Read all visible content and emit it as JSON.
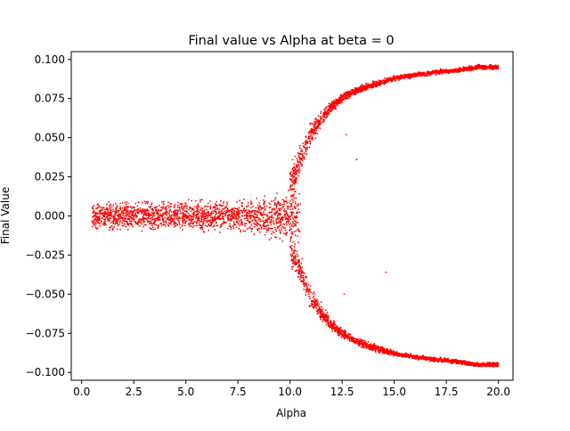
{
  "chart_data": {
    "type": "scatter",
    "title": "Final value vs Alpha at beta = 0",
    "xlabel": "Alpha",
    "ylabel": "Final Value",
    "xlim": [
      -0.5,
      20.7
    ],
    "ylim": [
      -0.105,
      0.105
    ],
    "xticks": [
      0.0,
      2.5,
      5.0,
      7.5,
      10.0,
      12.5,
      15.0,
      17.5,
      20.0
    ],
    "xtick_labels": [
      "0.0",
      "2.5",
      "5.0",
      "7.5",
      "10.0",
      "12.5",
      "15.0",
      "17.5",
      "20.0"
    ],
    "yticks": [
      -0.1,
      -0.075,
      -0.05,
      -0.025,
      0.0,
      0.025,
      0.05,
      0.075,
      0.1
    ],
    "ytick_labels": [
      "−0.100",
      "−0.075",
      "−0.050",
      "−0.025",
      "0.000",
      "0.025",
      "0.050",
      "0.075",
      "0.100"
    ],
    "grid": false,
    "marker_color": "#ff0000",
    "series": [
      {
        "x_range": [
          0.5,
          20.0
        ],
        "branches": [
          {
            "x": [
              0.5,
              4.0,
              7.0,
              8.5,
              9.5,
              10.0,
              10.5
            ],
            "center": [
              0.0,
              0.0,
              0.0,
              0.0,
              0.0,
              0.0,
              0.0
            ],
            "spread": [
              0.012,
              0.012,
              0.012,
              0.015,
              0.02,
              0.025,
              0.03
            ]
          },
          {
            "x": [
              10.0,
              10.5,
              11.0,
              11.5,
              12.0,
              12.5,
              13.0,
              14.0,
              15.0,
              16.0,
              17.0,
              18.0,
              19.0,
              20.0
            ],
            "center": [
              0.02,
              0.035,
              0.052,
              0.062,
              0.07,
              0.075,
              0.079,
              0.084,
              0.088,
              0.09,
              0.092,
              0.093,
              0.095,
              0.095
            ],
            "spread": [
              0.015,
              0.012,
              0.01,
              0.007,
              0.005,
              0.004,
              0.003,
              0.003,
              0.002,
              0.002,
              0.002,
              0.002,
              0.002,
              0.002
            ]
          },
          {
            "x": [
              10.0,
              10.5,
              11.0,
              11.5,
              12.0,
              12.5,
              13.0,
              14.0,
              15.0,
              16.0,
              17.0,
              18.0,
              19.0,
              20.0
            ],
            "center": [
              -0.02,
              -0.035,
              -0.052,
              -0.062,
              -0.07,
              -0.075,
              -0.079,
              -0.084,
              -0.088,
              -0.09,
              -0.092,
              -0.093,
              -0.095,
              -0.095
            ],
            "spread": [
              0.015,
              0.012,
              0.01,
              0.007,
              0.005,
              0.004,
              0.003,
              0.003,
              0.002,
              0.002,
              0.002,
              0.002,
              0.002,
              0.002
            ]
          }
        ],
        "outliers": [
          {
            "x": 12.7,
            "y": 0.052
          },
          {
            "x": 13.2,
            "y": 0.036
          },
          {
            "x": 14.6,
            "y": -0.036
          },
          {
            "x": 12.6,
            "y": -0.05
          }
        ]
      }
    ]
  }
}
